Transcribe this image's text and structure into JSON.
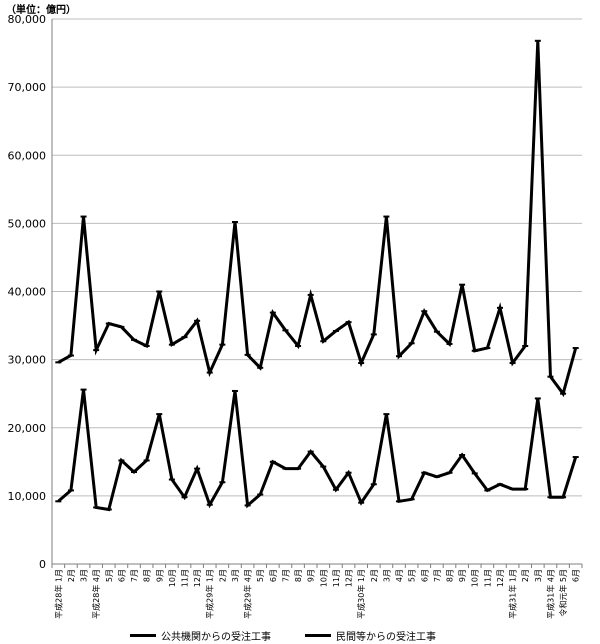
{
  "unit_label": "（単位：億円）",
  "chart_data": {
    "type": "line",
    "title": "",
    "xlabel": "",
    "ylabel": "",
    "ylim": [
      0,
      80000
    ],
    "yticks": [
      "0",
      "10,000",
      "20,000",
      "30,000",
      "40,000",
      "50,000",
      "60,000",
      "70,000",
      "80,000"
    ],
    "grid": true,
    "legend": "bottom",
    "categories": [
      "平成28年 1月",
      "2月",
      "3月",
      "平成28年 4月",
      "5月",
      "6月",
      "7月",
      "8月",
      "9月",
      "10月",
      "11月",
      "12月",
      "平成29年 1月",
      "2月",
      "3月",
      "平成29年 4月",
      "5月",
      "6月",
      "7月",
      "8月",
      "9月",
      "10月",
      "11月",
      "12月",
      "平成30年 1月",
      "2月",
      "3月",
      "4月",
      "5月",
      "6月",
      "7月",
      "8月",
      "9月",
      "10月",
      "11月",
      "12月",
      "平成31年 1月",
      "2月",
      "3月",
      "平成31年 4月",
      "令和元年 5月",
      "6月"
    ],
    "series": [
      {
        "name": "公共機関からの受注工事",
        "values": [
          9200,
          10800,
          25600,
          8300,
          8000,
          15200,
          13500,
          15200,
          22000,
          12400,
          9800,
          14000,
          8700,
          12000,
          25400,
          8600,
          10200,
          15000,
          14000,
          14000,
          16500,
          14300,
          10900,
          13400,
          9000,
          11700,
          22000,
          9200,
          9500,
          13400,
          12800,
          13400,
          16000,
          13300,
          10800,
          11700,
          11000,
          11000,
          24300,
          9800,
          9800,
          15700
        ]
      },
      {
        "name": "民間等からの受注工事",
        "values": [
          29600,
          30600,
          51000,
          31400,
          35300,
          34800,
          32900,
          32000,
          40000,
          32200,
          33300,
          35700,
          28100,
          32200,
          50200,
          30700,
          28800,
          36900,
          34300,
          32000,
          39500,
          32700,
          34200,
          35500,
          29500,
          33700,
          51000,
          30500,
          32400,
          37100,
          34100,
          32300,
          41000,
          31300,
          31700,
          37600,
          29500,
          32000,
          76800,
          27500,
          25000,
          31700
        ]
      }
    ]
  }
}
